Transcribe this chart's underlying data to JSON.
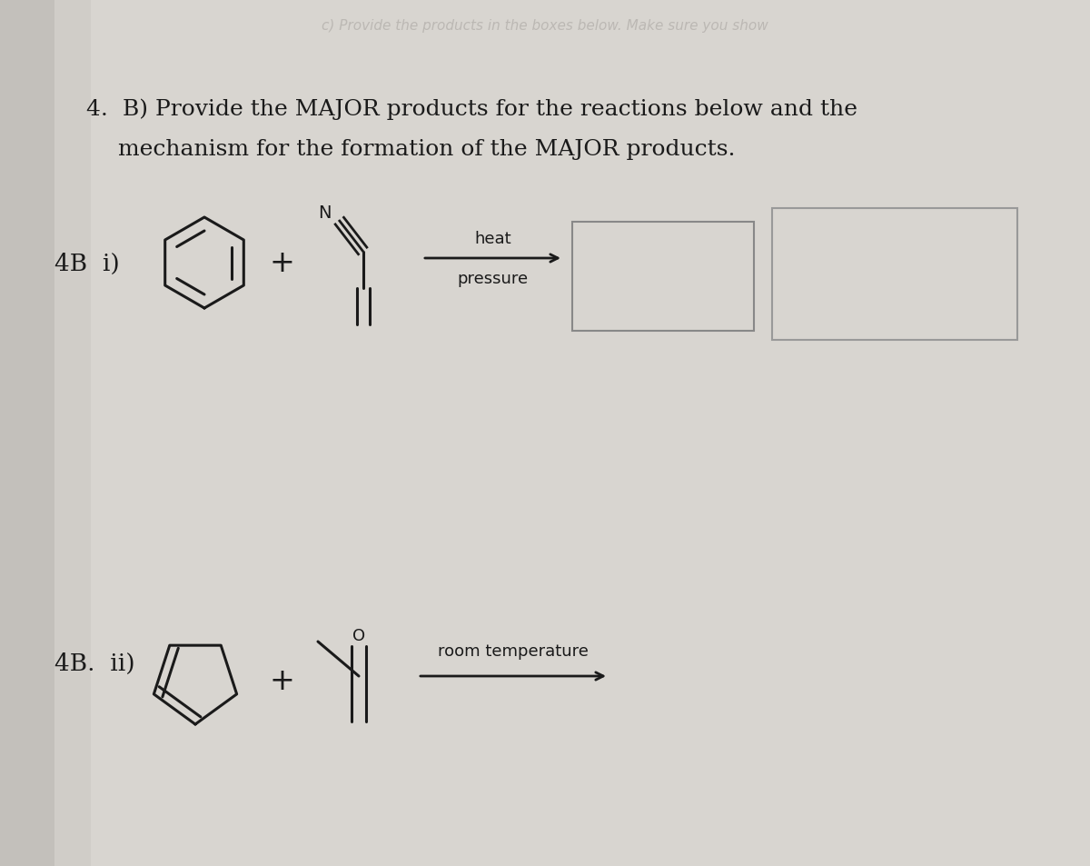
{
  "bg_color": "#d8d5d0",
  "paper_color": "#e8e6e1",
  "text_color": "#1a1a1a",
  "faded_color": "#b0aca8",
  "title_line1": "B) Provide the MAJOR products for the reactions below and the",
  "title_line2": "mechanism for the formation of the MAJOR products.",
  "label_num": "4.",
  "faded_top": "c) Provide the products in the boxes below. Make sure you show",
  "label_4B_i": "4B  i)",
  "label_4B_ii": "4B.  ii)",
  "arrow_i_top": "heat",
  "arrow_i_bot": "pressure",
  "arrow_ii": "room temperature",
  "lw": 2.2,
  "arrow_lw": 2.0
}
